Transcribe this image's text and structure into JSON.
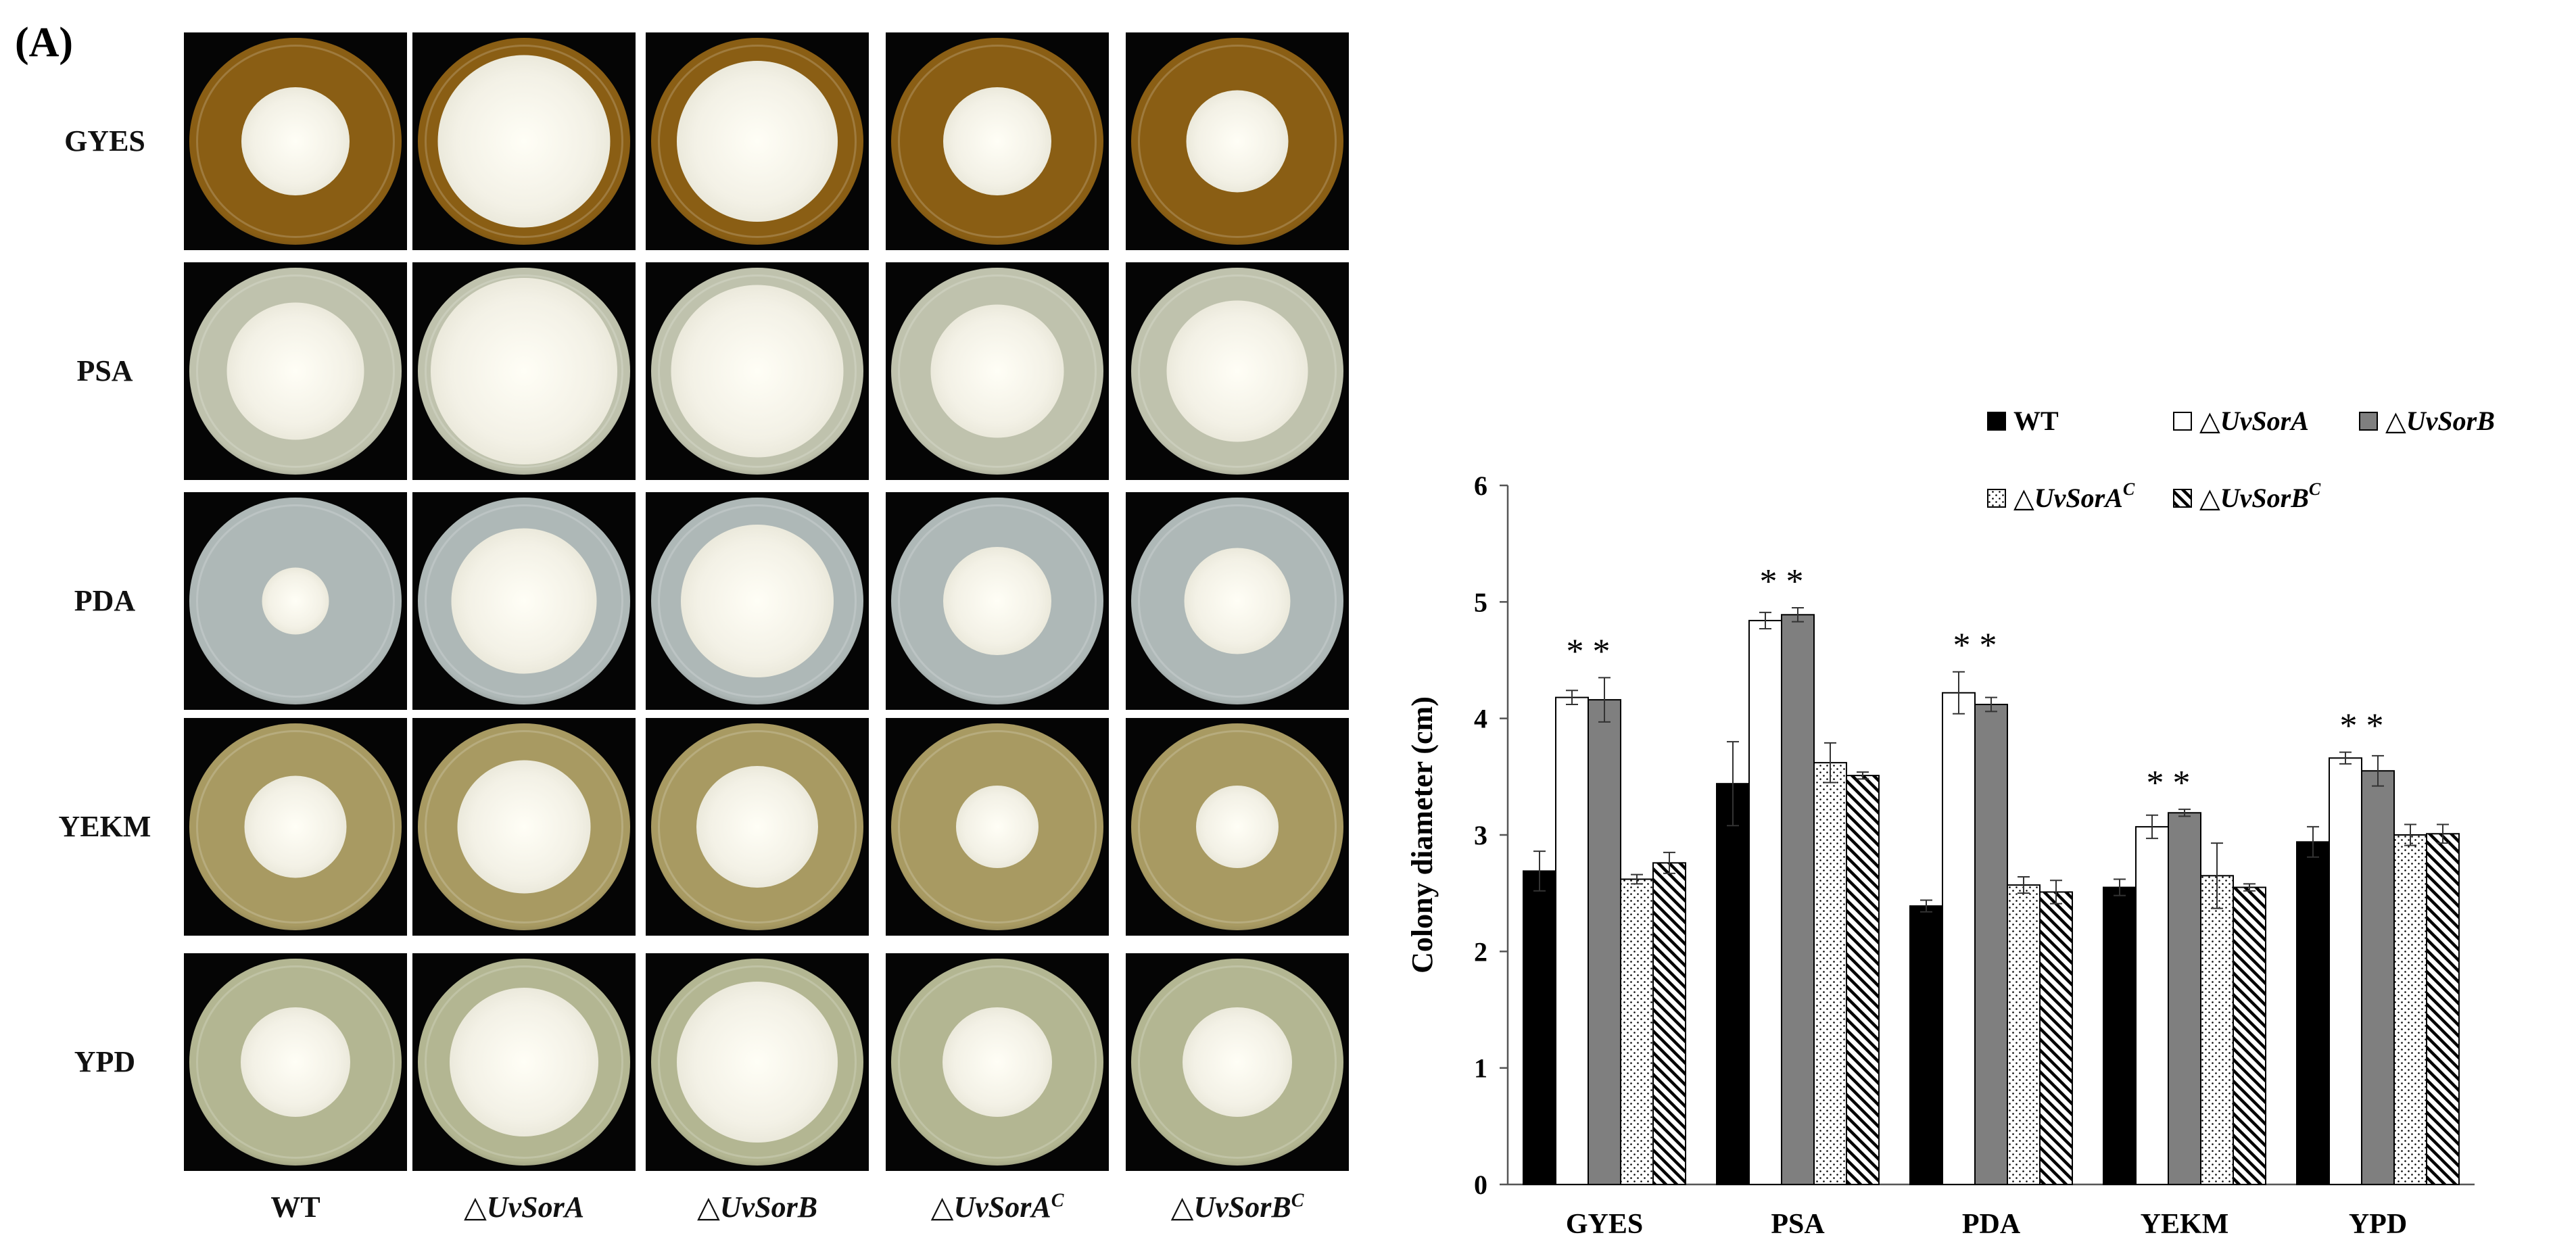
{
  "panel_label": "(A)",
  "plates": {
    "row_labels": [
      "GYES",
      "PSA",
      "PDA",
      "YEKM",
      "YPD"
    ],
    "col_labels": [
      {
        "prefix": "",
        "gene": "WT",
        "sup": ""
      },
      {
        "prefix": "△",
        "gene": "UvSorA",
        "sup": ""
      },
      {
        "prefix": "△",
        "gene": "UvSorB",
        "sup": ""
      },
      {
        "prefix": "△",
        "gene": "UvSorA",
        "sup": "C"
      },
      {
        "prefix": "△",
        "gene": "UvSorB",
        "sup": "C"
      }
    ],
    "media_colors": {
      "GYES": "#8a5e14",
      "PSA": "#bfc2ad",
      "PDA": "#aeb8b7",
      "YEKM": "#a89a62",
      "YPD": "#b3b692"
    },
    "colony_color": "#f3f1e6"
  },
  "chart_data": {
    "type": "bar",
    "ylabel": "Colony diameter (cm)",
    "xlabel": "",
    "ylim": [
      0,
      6
    ],
    "yticks": [
      "0",
      "1",
      "2",
      "3",
      "4",
      "5",
      "6"
    ],
    "categories": [
      "GYES",
      "PSA",
      "PDA",
      "YEKM",
      "YPD"
    ],
    "series": [
      {
        "name": "WT",
        "prefix": "",
        "gene": "WT",
        "sup": "",
        "pattern": "solid-black",
        "values": [
          2.69,
          3.44,
          2.39,
          2.55,
          2.94
        ],
        "errors": [
          0.17,
          0.36,
          0.05,
          0.07,
          0.13
        ]
      },
      {
        "name": "△UvSorA",
        "prefix": "△",
        "gene": "UvSorA",
        "sup": "",
        "pattern": "white",
        "values": [
          4.18,
          4.84,
          4.22,
          3.07,
          3.66
        ],
        "errors": [
          0.06,
          0.07,
          0.18,
          0.1,
          0.05
        ]
      },
      {
        "name": "△UvSorB",
        "prefix": "△",
        "gene": "UvSorB",
        "sup": "",
        "pattern": "solid-gray",
        "values": [
          4.16,
          4.89,
          4.12,
          3.19,
          3.55
        ],
        "errors": [
          0.19,
          0.06,
          0.06,
          0.03,
          0.13
        ]
      },
      {
        "name": "△UvSorAC",
        "prefix": "△",
        "gene": "UvSorA",
        "sup": "C",
        "pattern": "dotted",
        "values": [
          2.62,
          3.62,
          2.57,
          2.65,
          3.0
        ],
        "errors": [
          0.04,
          0.17,
          0.07,
          0.28,
          0.09
        ]
      },
      {
        "name": "△UvSorBC",
        "prefix": "△",
        "gene": "UvSorB",
        "sup": "C",
        "pattern": "hatched",
        "values": [
          2.76,
          3.51,
          2.51,
          2.55,
          3.01
        ],
        "errors": [
          0.09,
          0.03,
          0.1,
          0.03,
          0.08
        ]
      }
    ],
    "annotations": [
      "* *",
      "* *",
      "* *",
      "* *",
      "* *"
    ],
    "legend_position": "top-right",
    "colors": {
      "black": "#000000",
      "gray": "#808080",
      "white": "#ffffff"
    }
  }
}
